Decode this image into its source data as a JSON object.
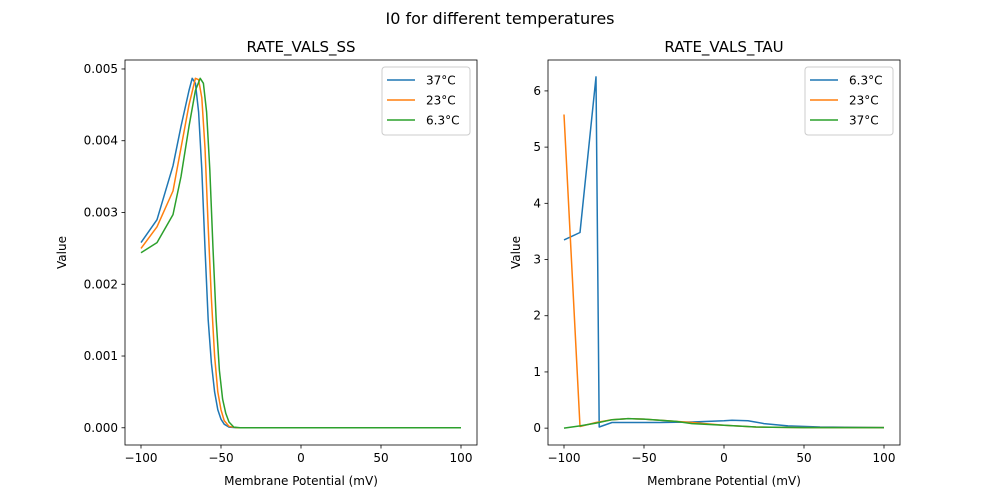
{
  "chart_data": {
    "suptitle": "I0 for different temperatures",
    "charts": [
      {
        "type": "line",
        "title": "RATE_VALS_SS",
        "xlabel": "Membrane Potential (mV)",
        "ylabel": "Value",
        "xlim": [
          -110,
          110
        ],
        "ylim": [
          -0.00024,
          0.005125
        ],
        "xticks": [
          -100,
          -50,
          0,
          50,
          100
        ],
        "xtick_labels": [
          "−100",
          "−50",
          "0",
          "50",
          "100"
        ],
        "yticks": [
          0,
          0.001,
          0.002,
          0.003,
          0.004,
          0.005
        ],
        "ytick_labels": [
          "0.000",
          "0.001",
          "0.002",
          "0.003",
          "0.004",
          "0.005"
        ],
        "legend": "top-right",
        "series": [
          {
            "name": "37°C",
            "color": "#1f77b4",
            "x": [
              -100,
              -90,
              -80,
              -75,
              -70,
              -68,
              -66,
              -64,
              -62,
              -60,
              -58,
              -56,
              -54,
              -52,
              -50,
              -48,
              -45,
              -40,
              100
            ],
            "y": [
              0.00258,
              0.0029,
              0.00365,
              0.0042,
              0.0047,
              0.00487,
              0.0048,
              0.0044,
              0.0036,
              0.0025,
              0.0015,
              0.0009,
              0.0005,
              0.00025,
              0.00012,
              5e-05,
              1e-05,
              0,
              0
            ]
          },
          {
            "name": "23°C",
            "color": "#ff7f0e",
            "x": [
              -100,
              -90,
              -80,
              -75,
              -70,
              -66,
              -64,
              -62,
              -60,
              -58,
              -56,
              -54,
              -52,
              -50,
              -48,
              -45,
              -40,
              100
            ],
            "y": [
              0.0025,
              0.0028,
              0.0033,
              0.0039,
              0.0045,
              0.00487,
              0.00485,
              0.0046,
              0.0039,
              0.0028,
              0.0018,
              0.001,
              0.0005,
              0.00025,
              0.0001,
              2e-05,
              0,
              0
            ]
          },
          {
            "name": "6.3°C",
            "color": "#2ca02c",
            "x": [
              -100,
              -90,
              -80,
              -75,
              -70,
              -66,
              -63,
              -61,
              -59,
              -57,
              -55,
              -53,
              -51,
              -49,
              -47,
              -45,
              -42,
              -38,
              100
            ],
            "y": [
              0.00244,
              0.00258,
              0.00297,
              0.0035,
              0.0042,
              0.0047,
              0.00487,
              0.0048,
              0.0044,
              0.0036,
              0.0025,
              0.0015,
              0.0008,
              0.0004,
              0.0002,
              8e-05,
              1e-05,
              0,
              0
            ]
          }
        ]
      },
      {
        "type": "line",
        "title": "RATE_VALS_TAU",
        "xlabel": "Membrane Potential (mV)",
        "ylabel": "Value",
        "xlim": [
          -110,
          110
        ],
        "ylim": [
          -0.3,
          6.55
        ],
        "xticks": [
          -100,
          -50,
          0,
          50,
          100
        ],
        "xtick_labels": [
          "−100",
          "−50",
          "0",
          "50",
          "100"
        ],
        "yticks": [
          0,
          1,
          2,
          3,
          4,
          5,
          6
        ],
        "ytick_labels": [
          "0",
          "1",
          "2",
          "3",
          "4",
          "5",
          "6"
        ],
        "legend": "top-right",
        "series": [
          {
            "name": "6.3°C",
            "color": "#1f77b4",
            "x": [
              -100,
              -90,
              -80,
              -78,
              -70,
              -60,
              -40,
              -20,
              0,
              5,
              15,
              25,
              40,
              60,
              100
            ],
            "y": [
              3.35,
              3.48,
              6.25,
              0.02,
              0.1,
              0.1,
              0.1,
              0.11,
              0.13,
              0.14,
              0.13,
              0.08,
              0.04,
              0.02,
              0.01
            ]
          },
          {
            "name": "23°C",
            "color": "#ff7f0e",
            "x": [
              -100,
              -90,
              -80,
              -70,
              -60,
              -50,
              -40,
              -20,
              0,
              20,
              50,
              100
            ],
            "y": [
              5.58,
              0.03,
              0.1,
              0.15,
              0.17,
              0.16,
              0.14,
              0.1,
              0.05,
              0.02,
              0.01,
              0.01
            ]
          },
          {
            "name": "37°C",
            "color": "#2ca02c",
            "x": [
              -100,
              -90,
              -80,
              -70,
              -60,
              -50,
              -40,
              -30,
              -20,
              0,
              20,
              50,
              100
            ],
            "y": [
              0.0,
              0.04,
              0.09,
              0.15,
              0.17,
              0.16,
              0.14,
              0.12,
              0.08,
              0.05,
              0.02,
              0.01,
              0.01
            ]
          }
        ]
      }
    ]
  }
}
